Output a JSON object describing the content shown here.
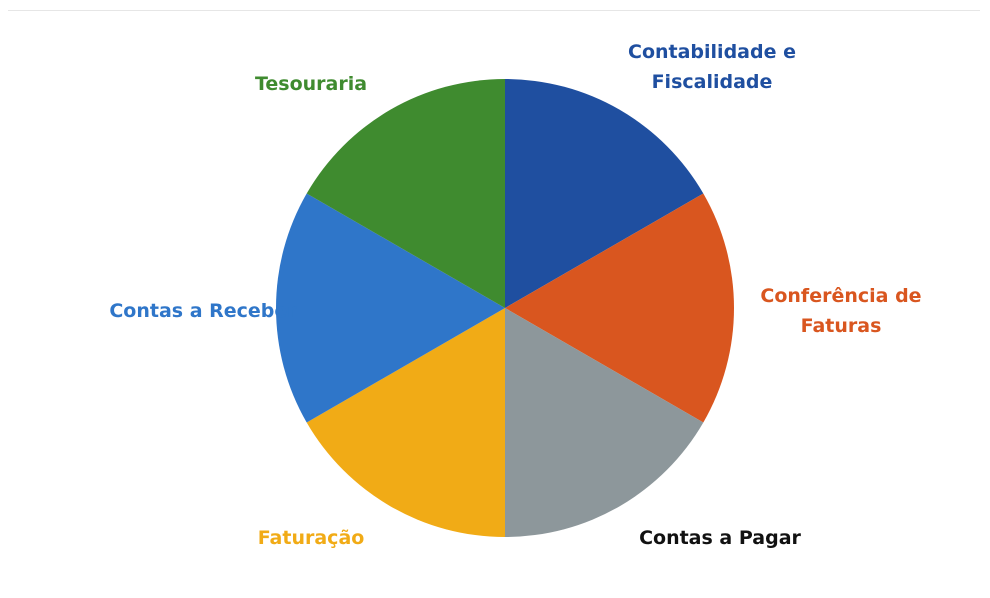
{
  "chart_data": {
    "type": "pie",
    "categories": [
      "Contabilidade e Fiscalidade",
      "Conferência de Faturas",
      "Contas a Pagar",
      "Faturação",
      "Contas a Receber",
      "Tesouraria"
    ],
    "values": [
      1,
      1,
      1,
      1,
      1,
      1
    ],
    "colors": [
      "#1f4fa0",
      "#d9561f",
      "#8d979b",
      "#f1ab16",
      "#2f76c9",
      "#3f8b2f"
    ],
    "label_colors": [
      "#1f4fa0",
      "#d9561f",
      "#111111",
      "#f1ab16",
      "#2f76c9",
      "#3f8b2f"
    ]
  }
}
